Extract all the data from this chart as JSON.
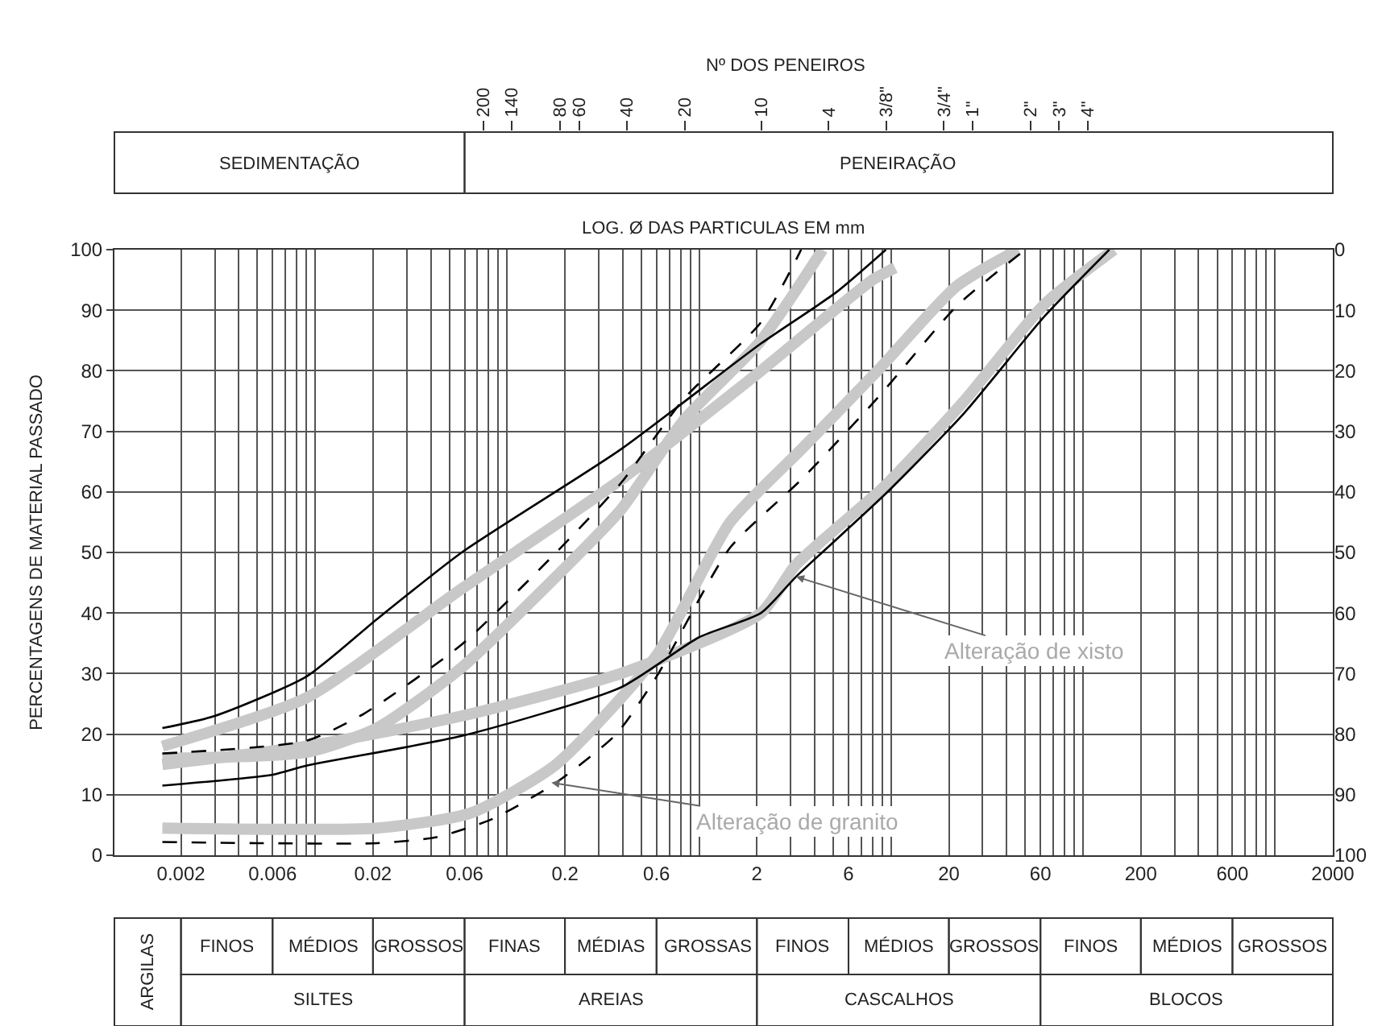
{
  "chart_data": [
    {
      "type": "line",
      "xlabel": "LOG. Ø DAS PARTICULAS EM mm",
      "ylabel": "PERCENTAGENS DE MATERIAL PASSADO",
      "log": "x",
      "xlim": [
        0.0009,
        2000
      ],
      "xticks": [
        {
          "value": 0.002,
          "label": "0.002"
        },
        {
          "value": 0.003,
          "label": null
        },
        {
          "value": 0.004,
          "label": null
        },
        {
          "value": 0.005,
          "label": null
        },
        {
          "value": 0.006,
          "label": "0.006"
        },
        {
          "value": 0.007,
          "label": null
        },
        {
          "value": 0.008,
          "label": null
        },
        {
          "value": 0.009,
          "label": null
        },
        {
          "value": 0.01,
          "label": null
        },
        {
          "value": 0.02,
          "label": "0.02"
        },
        {
          "value": 0.03,
          "label": null
        },
        {
          "value": 0.04,
          "label": null
        },
        {
          "value": 0.05,
          "label": null
        },
        {
          "value": 0.06,
          "label": "0.06"
        },
        {
          "value": 0.07,
          "label": null
        },
        {
          "value": 0.08,
          "label": null
        },
        {
          "value": 0.09,
          "label": null
        },
        {
          "value": 0.1,
          "label": null
        },
        {
          "value": 0.2,
          "label": "0.2"
        },
        {
          "value": 0.3,
          "label": null
        },
        {
          "value": 0.4,
          "label": null
        },
        {
          "value": 0.5,
          "label": null
        },
        {
          "value": 0.6,
          "label": "0.6"
        },
        {
          "value": 0.7,
          "label": null
        },
        {
          "value": 0.8,
          "label": null
        },
        {
          "value": 0.9,
          "label": null
        },
        {
          "value": 1,
          "label": null
        },
        {
          "value": 2,
          "label": "2"
        },
        {
          "value": 3,
          "label": null
        },
        {
          "value": 4,
          "label": null
        },
        {
          "value": 5,
          "label": null
        },
        {
          "value": 6,
          "label": "6"
        },
        {
          "value": 7,
          "label": null
        },
        {
          "value": 8,
          "label": null
        },
        {
          "value": 9,
          "label": null
        },
        {
          "value": 10,
          "label": null
        },
        {
          "value": 20,
          "label": "20"
        },
        {
          "value": 30,
          "label": null
        },
        {
          "value": 40,
          "label": null
        },
        {
          "value": 50,
          "label": null
        },
        {
          "value": 60,
          "label": "60"
        },
        {
          "value": 70,
          "label": null
        },
        {
          "value": 80,
          "label": null
        },
        {
          "value": 90,
          "label": null
        },
        {
          "value": 100,
          "label": null
        },
        {
          "value": 200,
          "label": "200"
        },
        {
          "value": 300,
          "label": null
        },
        {
          "value": 400,
          "label": null
        },
        {
          "value": 500,
          "label": null
        },
        {
          "value": 600,
          "label": "600"
        },
        {
          "value": 700,
          "label": null
        },
        {
          "value": 800,
          "label": null
        },
        {
          "value": 900,
          "label": null
        },
        {
          "value": 1000,
          "label": null
        },
        {
          "value": 2000,
          "label": "2000"
        }
      ],
      "ylim": [
        0,
        100
      ],
      "yticks": [
        0,
        10,
        20,
        30,
        40,
        50,
        60,
        70,
        80,
        90,
        100
      ],
      "y2lim": [
        100,
        0
      ],
      "y2ticks": [
        0,
        10,
        20,
        30,
        40,
        50,
        60,
        70,
        80,
        90,
        100
      ],
      "grid": true,
      "series": [
        {
          "color": "#c8c8c8",
          "line_style": "solid",
          "x": [
            0.0016,
            0.009,
            0.058,
            0.39,
            2.1,
            8,
            10.5
          ],
          "values": [
            18,
            26,
            44,
            62,
            80,
            95,
            97
          ]
        },
        {
          "color": "#c8c8c8",
          "line_style": "solid",
          "x": [
            0.0016,
            0.009,
            0.058,
            0.39,
            2.1,
            3.2,
            9.3,
            24,
            63,
            145
          ],
          "values": [
            15,
            18,
            23,
            30,
            40,
            48,
            61,
            75,
            91,
            100
          ]
        },
        {
          "color": "#c8c8c8",
          "line_style": "solid",
          "x": [
            0.0016,
            0.009,
            0.021,
            0.058,
            0.18,
            0.39,
            0.84,
            2.1,
            4.4
          ],
          "values": [
            16,
            17,
            21,
            31,
            46,
            57,
            72,
            85,
            100
          ]
        },
        {
          "color": "#c8c8c8",
          "line_style": "solid",
          "x": [
            0.0016,
            0.021,
            0.065,
            0.18,
            0.6,
            1.45,
            3.4,
            8.5,
            22,
            46
          ],
          "values": [
            4.5,
            4.5,
            7,
            15,
            33,
            55,
            67,
            80,
            94,
            100
          ]
        },
        {
          "color": "#000000",
          "line_style": "solid",
          "x": [
            0.0016,
            0.003,
            0.009,
            0.021,
            0.058,
            0.39,
            2.1,
            5.2,
            9.4
          ],
          "values": [
            21,
            23,
            29.5,
            39,
            50,
            67,
            84.5,
            93,
            100
          ]
        },
        {
          "color": "#000000",
          "line_style": "solid",
          "x": [
            0.0016,
            0.006,
            0.009,
            0.058,
            0.39,
            1.0,
            2.1,
            3.2,
            9.3,
            24,
            63,
            137
          ],
          "values": [
            11.5,
            13.3,
            14.8,
            19.7,
            27.7,
            36,
            40,
            46,
            59.6,
            73,
            89,
            100
          ]
        },
        {
          "color": "#000000",
          "line_style": "dashed",
          "x": [
            0.0016,
            0.009,
            0.018,
            0.058,
            0.18,
            0.39,
            0.84,
            2.1,
            3.4
          ],
          "values": [
            16.8,
            18.9,
            23.4,
            34.8,
            50,
            61.4,
            75.5,
            88,
            100
          ]
        },
        {
          "color": "#000000",
          "line_style": "dashed",
          "x": [
            0.0016,
            0.005,
            0.021,
            0.043,
            0.084,
            0.18,
            0.37,
            0.6,
            1.45,
            3.4,
            8.5,
            22,
            50
          ],
          "values": [
            2.2,
            2,
            2,
            3,
            6,
            12,
            20,
            29.5,
            50.8,
            62,
            75.5,
            90.7,
            100
          ]
        }
      ],
      "annotations": [
        {
          "text": "Alteração de xisto",
          "x": 3.2,
          "y": 46
        },
        {
          "text": "Alteração de granito",
          "x": 0.17,
          "y": 12
        },
        "SEDIMENTAÇÃO",
        "PENEIRAÇÃO",
        "ARGILAS",
        "FINOS",
        "MÉDIOS",
        "GROSSOS",
        "FINAS",
        "MÉDIAS",
        "GROSSAS",
        "FINOS",
        "MÉDIOS",
        "GROSSOS",
        "FINOS",
        "MÉDIOS",
        "GROSSOS",
        "SILTES",
        "AREIAS",
        "CASCALHOS",
        "BLOCOS"
      ]
    },
    {
      "type": "other",
      "xlabel": "Nº DOS PENEIROS",
      "categories": [
        "200",
        null,
        null,
        "140",
        null,
        null,
        null,
        null,
        "80",
        null,
        "60",
        null,
        null,
        null,
        null,
        "40",
        null,
        null,
        null,
        null,
        null,
        "20",
        null,
        null,
        null,
        null,
        null,
        null,
        null,
        "10",
        null,
        null,
        null,
        null,
        null,
        null,
        "4",
        null,
        null,
        null,
        null,
        null,
        "3/8\"",
        null,
        null,
        null,
        null,
        null,
        "3/4\"",
        null,
        null,
        "1\"",
        null,
        null,
        null,
        null,
        null,
        "2\"",
        null,
        null,
        "3\"",
        null,
        null,
        "4\""
      ]
    }
  ]
}
